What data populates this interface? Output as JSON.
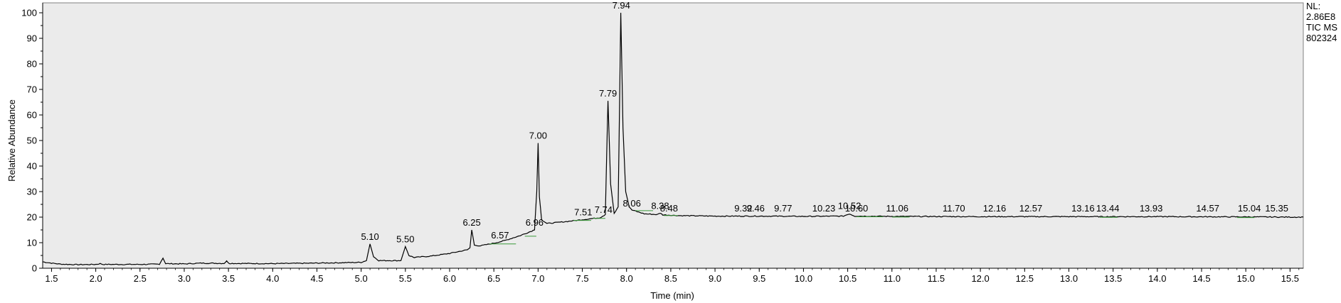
{
  "chart_data": {
    "type": "line",
    "xlabel": "Time (min)",
    "ylabel": "Relative Abundance",
    "xlim": [
      1.4,
      15.65
    ],
    "ylim": [
      0,
      100
    ],
    "x_ticks": [
      "1.5",
      "2.0",
      "2.5",
      "3.0",
      "3.5",
      "4.0",
      "4.5",
      "5.0",
      "5.5",
      "6.0",
      "6.5",
      "7.0",
      "7.5",
      "8.0",
      "8.5",
      "9.0",
      "9.5",
      "10.0",
      "10.5",
      "11.0",
      "11.5",
      "12.0",
      "12.5",
      "13.0",
      "13.5",
      "14.0",
      "14.5",
      "15.0",
      "15.5"
    ],
    "y_ticks": [
      "0",
      "10",
      "20",
      "30",
      "40",
      "50",
      "60",
      "70",
      "80",
      "90",
      "100"
    ],
    "info": [
      "NL:",
      "2.86E8",
      "TIC  MS",
      "802324"
    ],
    "peaks": [
      {
        "label": "5.10",
        "x": 5.1,
        "y": 9.5
      },
      {
        "label": "5.50",
        "x": 5.5,
        "y": 8.5
      },
      {
        "label": "6.25",
        "x": 6.25,
        "y": 15
      },
      {
        "label": "6.57",
        "x": 6.57,
        "y": 10
      },
      {
        "label": "6.96",
        "x": 6.96,
        "y": 15
      },
      {
        "label": "7.00",
        "x": 7.0,
        "y": 49
      },
      {
        "label": "7.51",
        "x": 7.51,
        "y": 19
      },
      {
        "label": "7.74",
        "x": 7.74,
        "y": 20
      },
      {
        "label": "7.79",
        "x": 7.79,
        "y": 65.5
      },
      {
        "label": "7.94",
        "x": 7.94,
        "y": 100
      },
      {
        "label": "8.06",
        "x": 8.06,
        "y": 22.5
      },
      {
        "label": "8.38",
        "x": 8.38,
        "y": 21.5
      },
      {
        "label": "8.48",
        "x": 8.48,
        "y": 20.5
      },
      {
        "label": "9.32",
        "x": 9.32,
        "y": 20.5
      },
      {
        "label": "9.46",
        "x": 9.46,
        "y": 20.5
      },
      {
        "label": "9.77",
        "x": 9.77,
        "y": 20.5
      },
      {
        "label": "10.23",
        "x": 10.23,
        "y": 20.5
      },
      {
        "label": "10.52",
        "x": 10.52,
        "y": 21.5
      },
      {
        "label": "10.60",
        "x": 10.6,
        "y": 20.5
      },
      {
        "label": "11.06",
        "x": 11.06,
        "y": 20.5
      },
      {
        "label": "11.70",
        "x": 11.7,
        "y": 20.5
      },
      {
        "label": "12.16",
        "x": 12.16,
        "y": 20.5
      },
      {
        "label": "12.57",
        "x": 12.57,
        "y": 20.5
      },
      {
        "label": "13.16",
        "x": 13.16,
        "y": 20.5
      },
      {
        "label": "13.44",
        "x": 13.44,
        "y": 20.5
      },
      {
        "label": "13.93",
        "x": 13.93,
        "y": 20.5
      },
      {
        "label": "14.57",
        "x": 14.57,
        "y": 20.5
      },
      {
        "label": "15.04",
        "x": 15.04,
        "y": 20.5
      },
      {
        "label": "15.35",
        "x": 15.35,
        "y": 20.5
      }
    ],
    "trace": [
      [
        1.4,
        2.5
      ],
      [
        1.5,
        2.0
      ],
      [
        1.6,
        1.6
      ],
      [
        1.8,
        1.4
      ],
      [
        2.0,
        1.5
      ],
      [
        2.05,
        1.8
      ],
      [
        2.08,
        1.5
      ],
      [
        2.5,
        1.5
      ],
      [
        2.72,
        1.6
      ],
      [
        2.76,
        4.0
      ],
      [
        2.79,
        1.8
      ],
      [
        3.0,
        1.7
      ],
      [
        3.2,
        2.0
      ],
      [
        3.45,
        1.9
      ],
      [
        3.48,
        2.8
      ],
      [
        3.51,
        1.9
      ],
      [
        4.0,
        1.8
      ],
      [
        4.5,
        2.0
      ],
      [
        5.0,
        2.3
      ],
      [
        5.06,
        3.0
      ],
      [
        5.1,
        9.5
      ],
      [
        5.14,
        4.5
      ],
      [
        5.2,
        3.0
      ],
      [
        5.45,
        3.0
      ],
      [
        5.5,
        8.5
      ],
      [
        5.54,
        5.0
      ],
      [
        5.6,
        4.2
      ],
      [
        5.8,
        4.8
      ],
      [
        6.0,
        5.8
      ],
      [
        6.2,
        7.2
      ],
      [
        6.23,
        8.0
      ],
      [
        6.25,
        15.0
      ],
      [
        6.28,
        9.0
      ],
      [
        6.35,
        8.8
      ],
      [
        6.5,
        9.8
      ],
      [
        6.6,
        10.6
      ],
      [
        6.8,
        12.8
      ],
      [
        6.96,
        15.0
      ],
      [
        6.985,
        30.0
      ],
      [
        7.0,
        49.0
      ],
      [
        7.015,
        28.0
      ],
      [
        7.04,
        19.0
      ],
      [
        7.1,
        17.5
      ],
      [
        7.3,
        18.2
      ],
      [
        7.5,
        19.0
      ],
      [
        7.7,
        19.8
      ],
      [
        7.76,
        21.0
      ],
      [
        7.79,
        65.5
      ],
      [
        7.82,
        33.0
      ],
      [
        7.86,
        21.5
      ],
      [
        7.905,
        24.0
      ],
      [
        7.935,
        100.0
      ],
      [
        7.96,
        55.0
      ],
      [
        7.99,
        30.0
      ],
      [
        8.03,
        24.0
      ],
      [
        8.06,
        22.8
      ],
      [
        8.2,
        21.3
      ],
      [
        8.35,
        21.0
      ],
      [
        8.38,
        21.6
      ],
      [
        8.41,
        20.9
      ],
      [
        8.6,
        20.6
      ],
      [
        9.0,
        20.4
      ],
      [
        9.5,
        20.4
      ],
      [
        10.0,
        20.3
      ],
      [
        10.45,
        20.4
      ],
      [
        10.52,
        21.3
      ],
      [
        10.58,
        20.4
      ],
      [
        11.0,
        20.3
      ],
      [
        12.0,
        20.2
      ],
      [
        13.0,
        20.2
      ],
      [
        14.0,
        20.2
      ],
      [
        15.0,
        20.1
      ],
      [
        15.65,
        20.0
      ]
    ]
  }
}
